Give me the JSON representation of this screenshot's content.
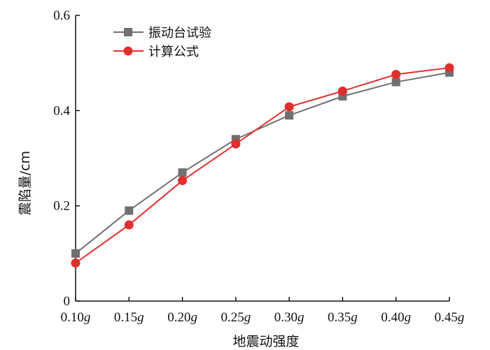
{
  "chart_data": {
    "type": "line",
    "categories": [
      "0.10g",
      "0.15g",
      "0.20g",
      "0.25g",
      "0.30g",
      "0.35g",
      "0.40g",
      "0.45g"
    ],
    "series": [
      {
        "name": "振动台试验",
        "color": "#707070",
        "marker": "square",
        "values": [
          0.1,
          0.19,
          0.27,
          0.34,
          0.39,
          0.43,
          0.46,
          0.48
        ]
      },
      {
        "name": "计算公式",
        "color": "#e0302e",
        "marker": "circle",
        "values": [
          0.08,
          0.16,
          0.253,
          0.33,
          0.408,
          0.441,
          0.476,
          0.49
        ]
      }
    ],
    "xlabel": "地震动强度",
    "ylabel": "震陷量/cm",
    "ylim": [
      0,
      0.6
    ],
    "yticks": [
      "0",
      "0.2",
      "0.4",
      "0.6"
    ],
    "grid": false,
    "legend_position": "top-left"
  }
}
